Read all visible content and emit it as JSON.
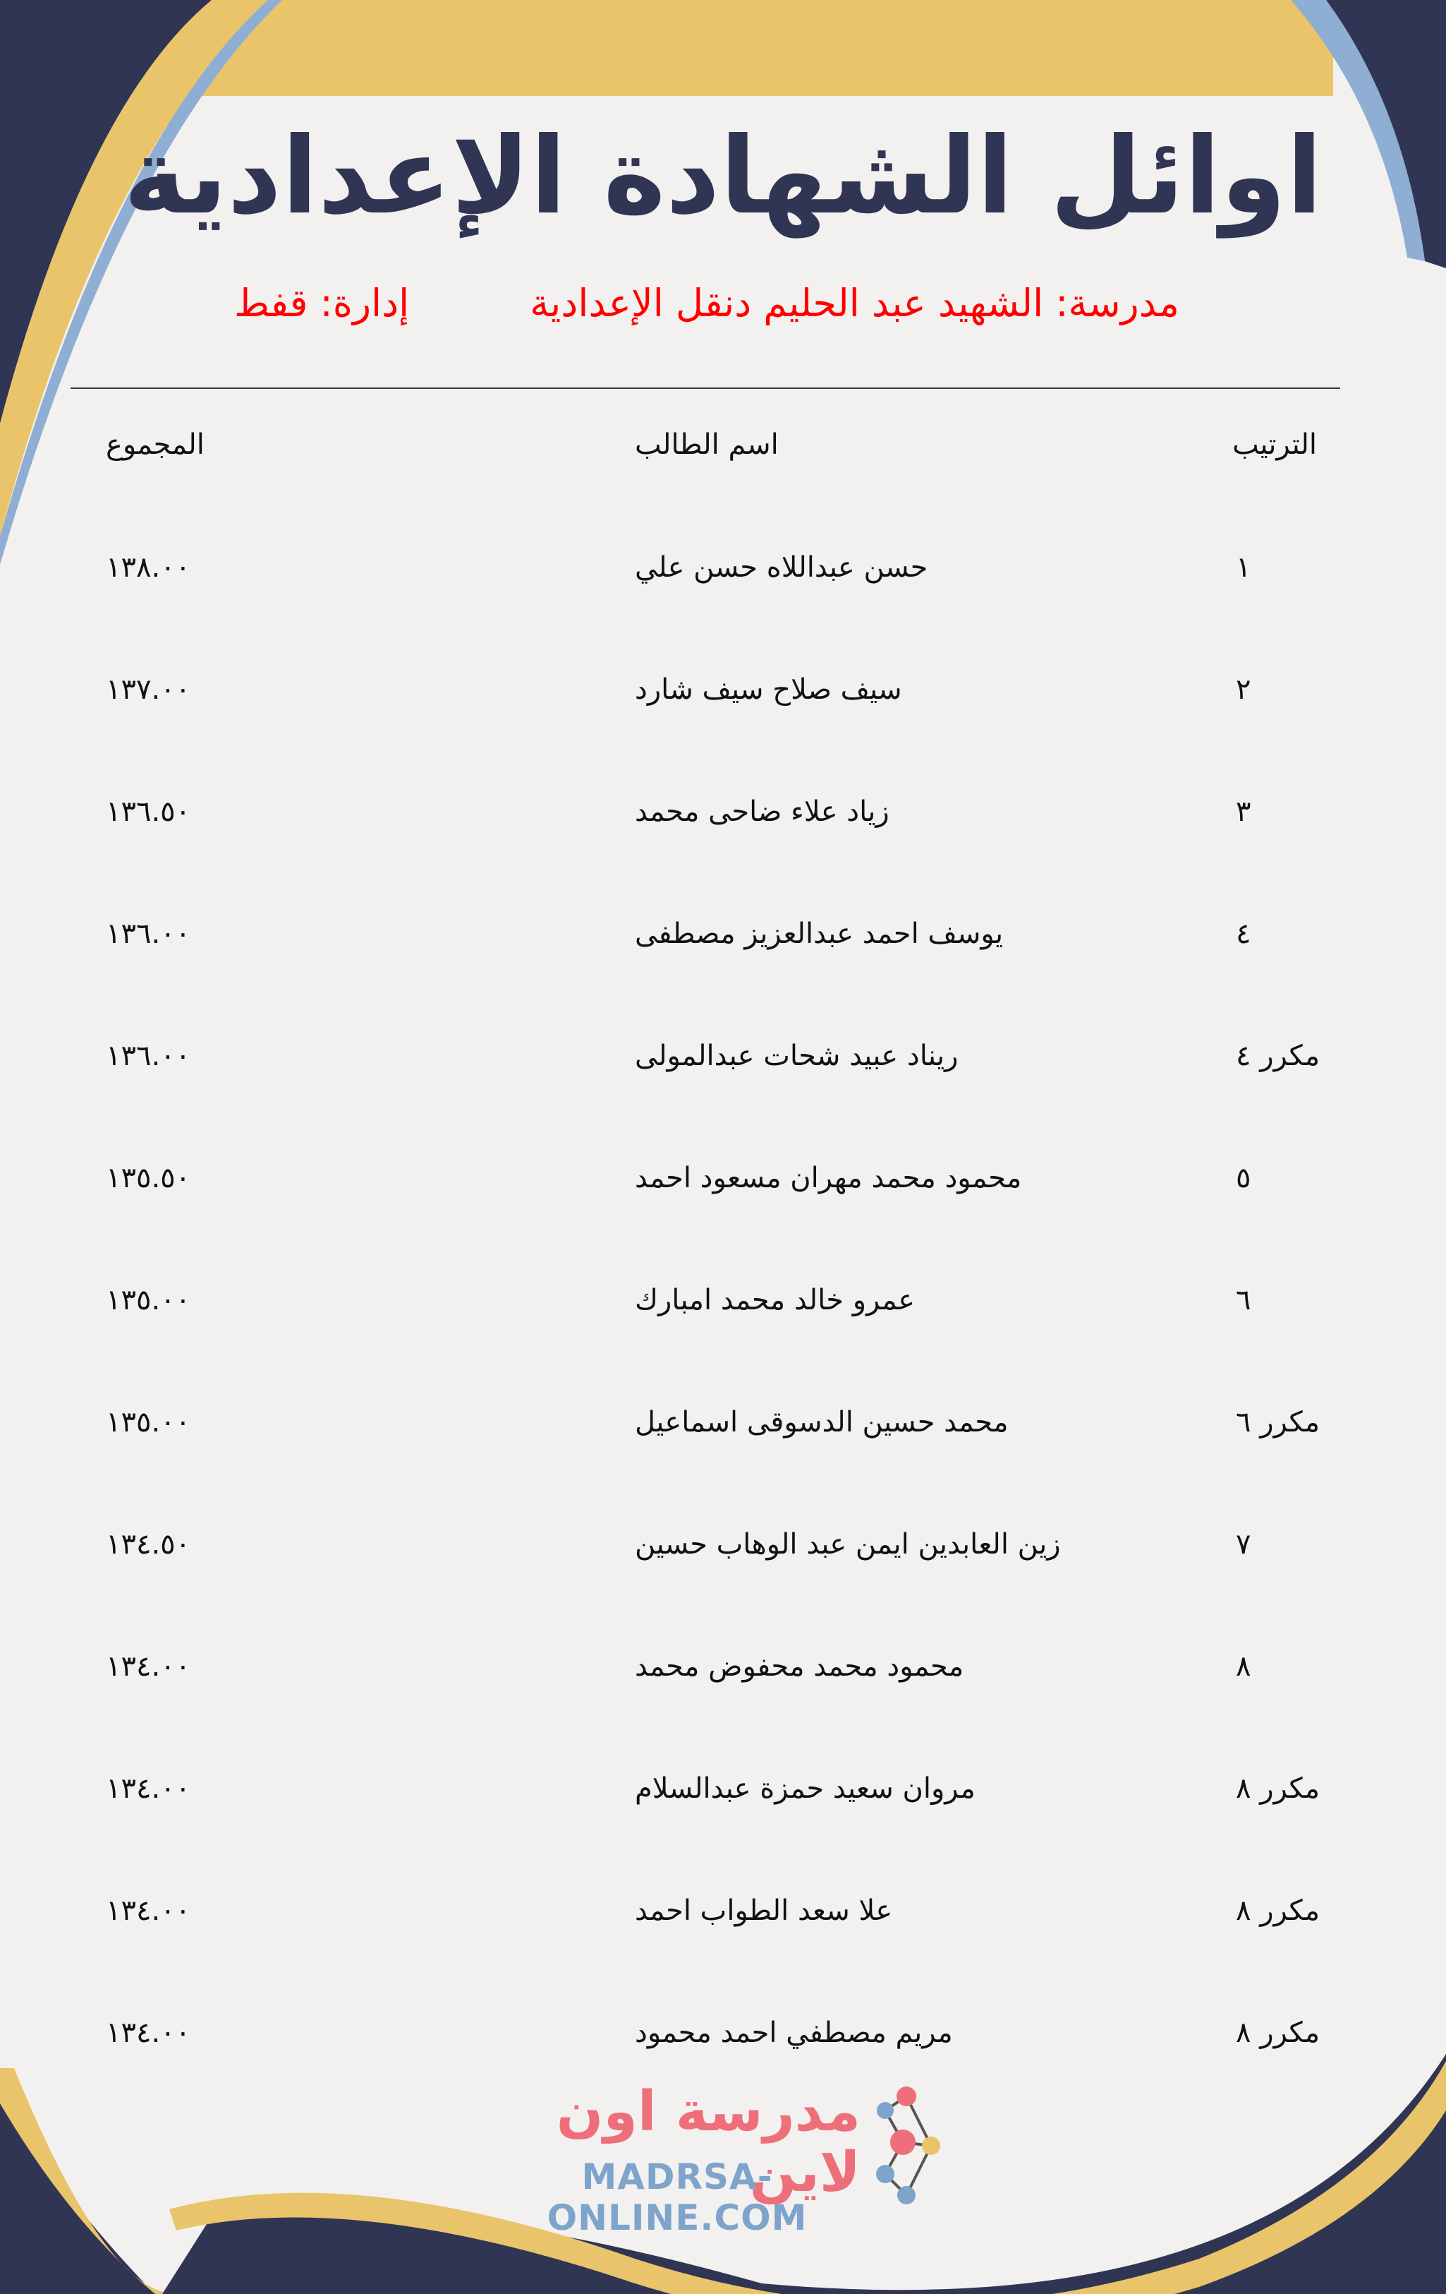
{
  "colors": {
    "navy": "#2f3553",
    "gold": "#e9c46a",
    "accent_red": "#ff0000",
    "logo_pink": "#ee6f7a",
    "logo_blue": "#7ea4cc"
  },
  "header": {
    "title": "اوائل الشهادة الإعدادية",
    "school": "مدرسة: الشهيد عبد الحليم دنقل الإعدادية",
    "administration": "إدارة: قفط"
  },
  "table": {
    "columns": {
      "rank": "الترتيب",
      "name": "اسم الطالب",
      "total": "المجموع"
    },
    "rows": [
      {
        "rank": "١",
        "name": "حسن عبداللاه حسن علي",
        "total": "١٣٨.٠٠"
      },
      {
        "rank": "٢",
        "name": "سيف صلاح سيف شارد",
        "total": "١٣٧.٠٠"
      },
      {
        "rank": "٣",
        "name": "زياد علاء ضاحى محمد",
        "total": "١٣٦.٥٠"
      },
      {
        "rank": "٤",
        "name": "يوسف احمد عبدالعزيز مصطفى",
        "total": "١٣٦.٠٠"
      },
      {
        "rank": "مكرر ٤",
        "name": "ريناد عبيد شحات عبدالمولى",
        "total": "١٣٦.٠٠"
      },
      {
        "rank": "٥",
        "name": "محمود محمد مهران مسعود احمد",
        "total": "١٣٥.٥٠"
      },
      {
        "rank": "٦",
        "name": "عمرو خالد محمد امبارك",
        "total": "١٣٥.٠٠"
      },
      {
        "rank": "مكرر ٦",
        "name": "محمد حسين الدسوقى اسماعيل",
        "total": "١٣٥.٠٠"
      },
      {
        "rank": "٧",
        "name": "زين العابدين ايمن عبد الوهاب حسين",
        "total": "١٣٤.٥٠"
      },
      {
        "rank": "٨",
        "name": "محمود محمد محفوض محمد",
        "total": "١٣٤.٠٠"
      },
      {
        "rank": "مكرر ٨",
        "name": "مروان سعيد حمزة عبدالسلام",
        "total": "١٣٤.٠٠"
      },
      {
        "rank": "مكرر ٨",
        "name": "علا سعد الطواب احمد",
        "total": "١٣٤.٠٠"
      },
      {
        "rank": "مكرر ٨",
        "name": "مريم مصطفي احمد محمود",
        "total": "١٣٤.٠٠"
      }
    ]
  },
  "logo": {
    "arabic": "مدرسة اون لاين",
    "latin": "MADRSA-ONLINE.COM",
    "icon": "molecule-icon"
  }
}
